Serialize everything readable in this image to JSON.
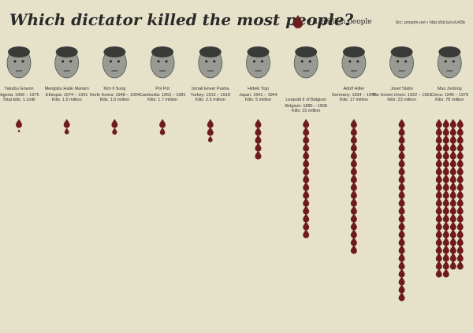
{
  "chart_data": {
    "type": "pictograph",
    "title": "Which dictator killed the most people?",
    "legend_label": "= 1 million people",
    "source": "Src: pmjstm.net • http://bit.ly/cvU43b",
    "color": "#6e1b1e",
    "categories": [
      "Yakubu Gowon",
      "Mengistu Haile Mariam",
      "Kim Il Sung",
      "Pol Pot",
      "Ismail Enver Pasha",
      "Hideki Tojo",
      "Leopold II of Belgium",
      "Adolf Hitler",
      "Josef Stalin",
      "Mao Zedong"
    ],
    "details": [
      "Nigeria: 1966 – 1975",
      "Ethiopia: 1974 – 1991",
      "North Korea: 1948 – 1994",
      "Cambodia: 1963 – 1981",
      "Turkey: 1913 – 1918",
      "Japan: 1941 – 1944",
      "Belgium: 1885 – 1908",
      "Germany: 1934 – 1945",
      "The Soviet Union: 1922 – 1953",
      "China: 1945 – 1976"
    ],
    "values": [
      1.1,
      1.5,
      1.6,
      1.7,
      2.5,
      5,
      15,
      17,
      23,
      78
    ],
    "value_labels": [
      "Total kills: 1.1mill",
      "Kills: 1.5 million",
      "Kills: 1.6 million",
      "Kills: 1.7 million",
      "Kills: 2.5 million",
      "Kills: 5 million",
      "Kills: 15 million",
      "Kills: 17 million",
      "Kills: 23 million",
      "Kills: 78 million"
    ]
  }
}
